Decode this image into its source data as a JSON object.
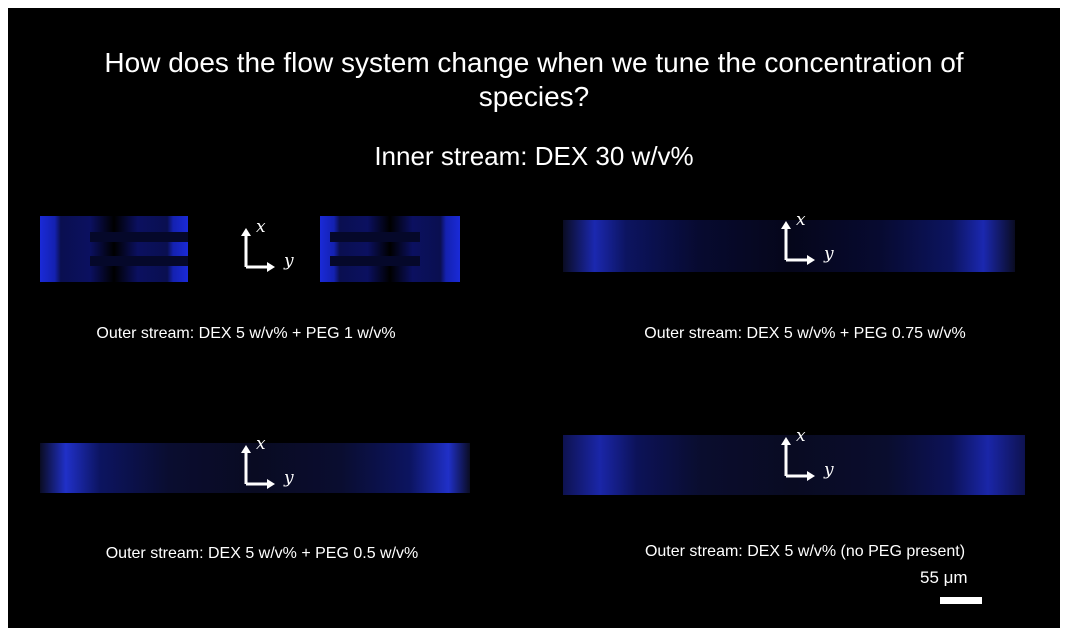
{
  "header": {
    "title": "How does the flow system change when we tune the concentration of species?",
    "subtitle": "Inner stream: DEX 30 w/v%"
  },
  "panels": [
    {
      "caption": "Outer stream: DEX 5 w/v% + PEG 1 w/v%",
      "axes": {
        "x": "x",
        "y": "y"
      }
    },
    {
      "caption": "Outer stream: DEX 5 w/v% + PEG 0.75 w/v%",
      "axes": {
        "x": "x",
        "y": "y"
      }
    },
    {
      "caption": "Outer stream: DEX 5 w/v% + PEG 0.5 w/v%",
      "axes": {
        "x": "x",
        "y": "y"
      }
    },
    {
      "caption": "Outer stream: DEX 5 w/v%  (no PEG present)",
      "axes": {
        "x": "x",
        "y": "y"
      }
    }
  ],
  "scale_bar": {
    "label": "55 μm"
  }
}
